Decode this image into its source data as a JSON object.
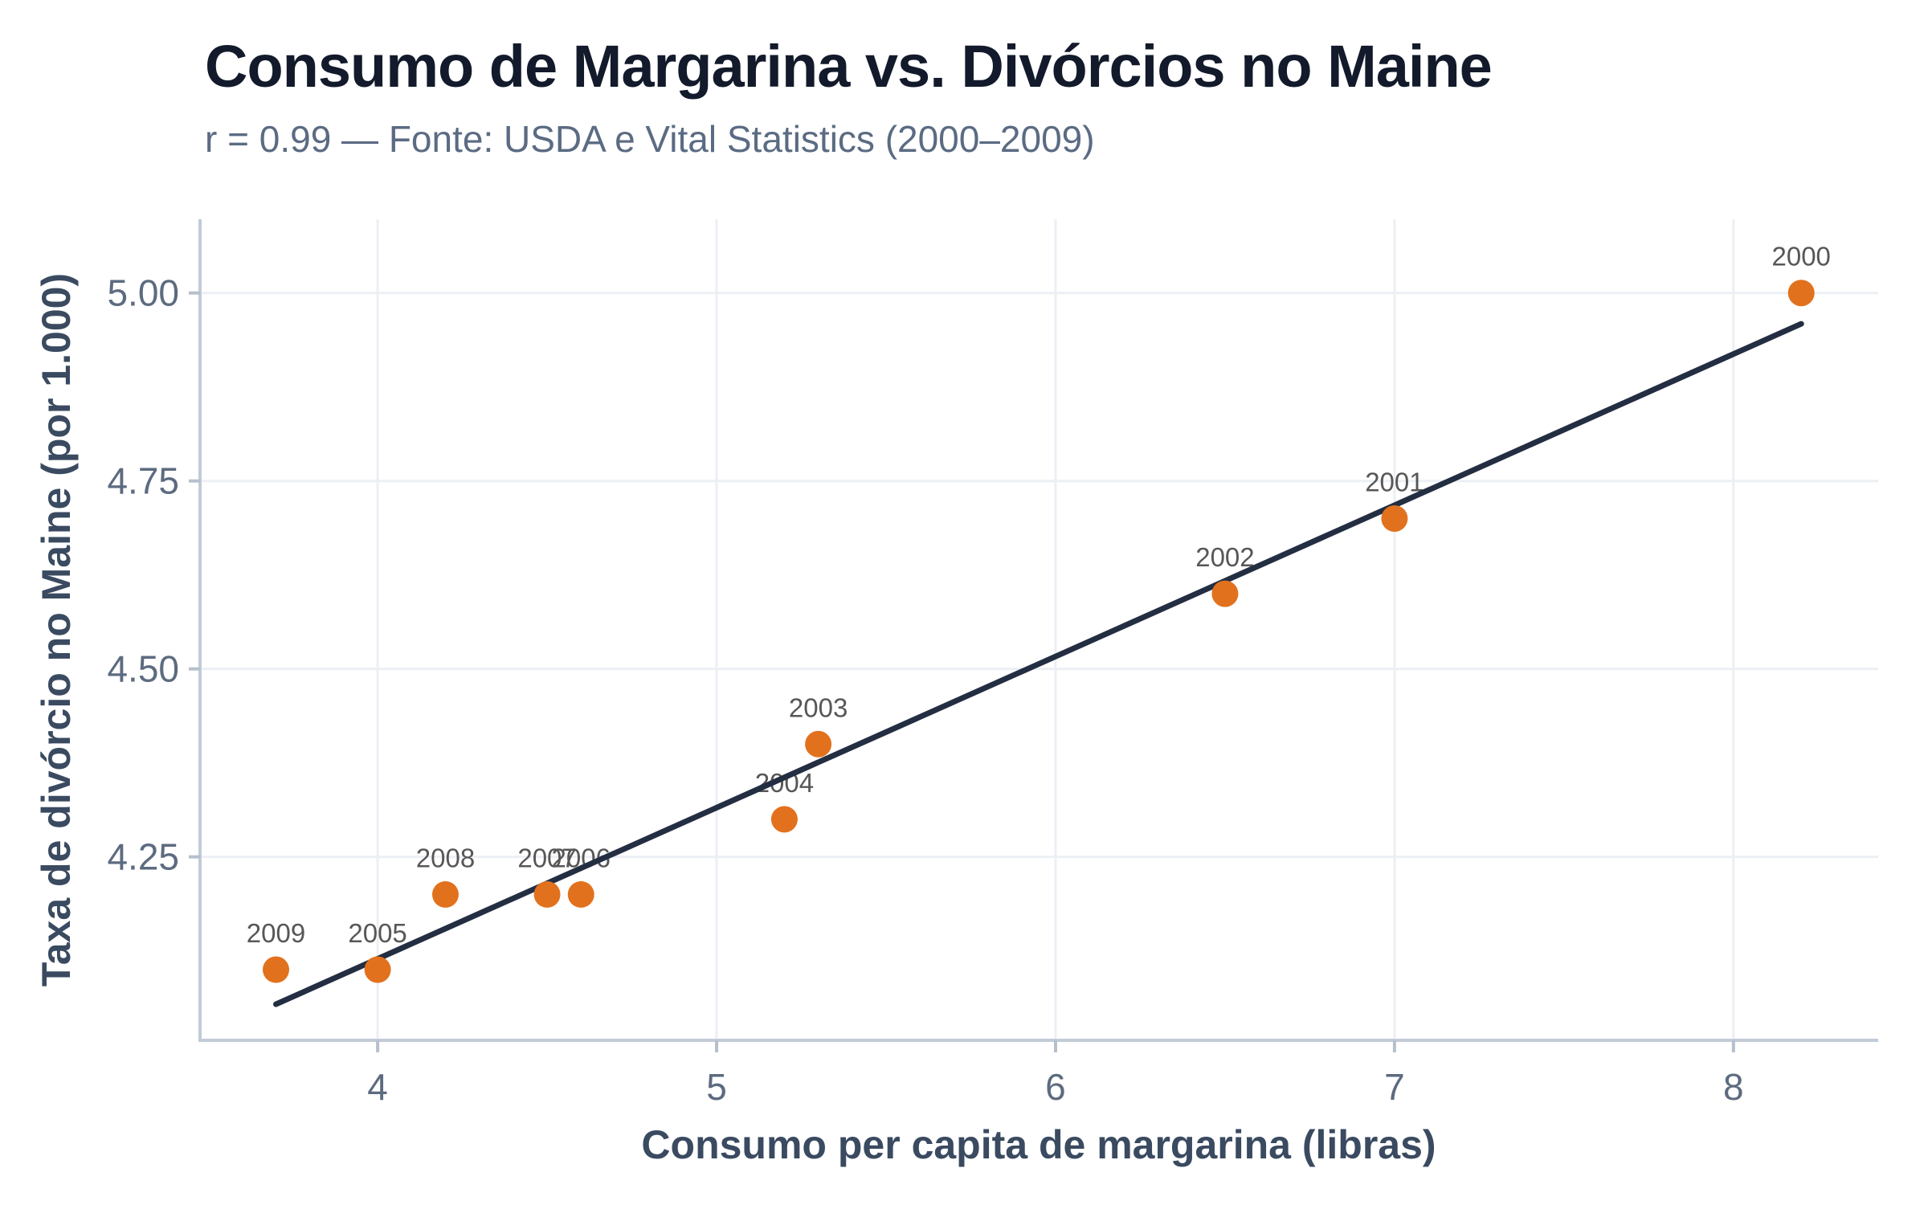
{
  "header": {
    "title": "Consumo de Margarina vs. Divórcios no Maine",
    "subtitle": "r = 0.99 — Fonte: USDA e Vital Statistics (2000–2009)"
  },
  "chart_data": {
    "type": "scatter",
    "title": "Consumo de Margarina vs. Divórcios no Maine",
    "subtitle": "r = 0.99 — Fonte: USDA e Vital Statistics (2000–2009)",
    "xlabel": "Consumo per capita de margarina (libras)",
    "ylabel": "Taxa de divórcio no Maine (por 1.000)",
    "xlim": [
      3.476,
      8.427
    ],
    "ylim": [
      4.006,
      5.098
    ],
    "x_ticks": [
      {
        "value": 4,
        "label": "4"
      },
      {
        "value": 5,
        "label": "5"
      },
      {
        "value": 6,
        "label": "6"
      },
      {
        "value": 7,
        "label": "7"
      },
      {
        "value": 8,
        "label": "8"
      }
    ],
    "y_ticks": [
      {
        "value": 4.25,
        "label": "4.25"
      },
      {
        "value": 4.5,
        "label": "4.50"
      },
      {
        "value": 4.75,
        "label": "4.75"
      },
      {
        "value": 5.0,
        "label": "5.00"
      }
    ],
    "grid": true,
    "legend_position": "none",
    "points": [
      {
        "label": "2000",
        "x": 8.2,
        "y": 5.0
      },
      {
        "label": "2001",
        "x": 7.0,
        "y": 4.7
      },
      {
        "label": "2002",
        "x": 6.5,
        "y": 4.6
      },
      {
        "label": "2003",
        "x": 5.3,
        "y": 4.4
      },
      {
        "label": "2004",
        "x": 5.2,
        "y": 4.3
      },
      {
        "label": "2005",
        "x": 4.0,
        "y": 4.1
      },
      {
        "label": "2006",
        "x": 4.6,
        "y": 4.2
      },
      {
        "label": "2007",
        "x": 4.5,
        "y": 4.2
      },
      {
        "label": "2008",
        "x": 4.2,
        "y": 4.2
      },
      {
        "label": "2009",
        "x": 3.7,
        "y": 4.1
      }
    ],
    "trend_line": {
      "x1": 3.7,
      "y1": 4.054,
      "x2": 8.2,
      "y2": 4.959
    },
    "colors": {
      "point": "#E2711D",
      "trend_line": "#242E42",
      "grid": "#ECEFF4",
      "axis": "#C2CBD7",
      "tick_mark": "#B6C0CD",
      "title": "#121A2B",
      "subtitle": "#5B6B83",
      "axis_title": "#3A4A60",
      "tick_label": "#5D6B80",
      "point_label": "#575757",
      "background": "#FFFFFF"
    }
  }
}
